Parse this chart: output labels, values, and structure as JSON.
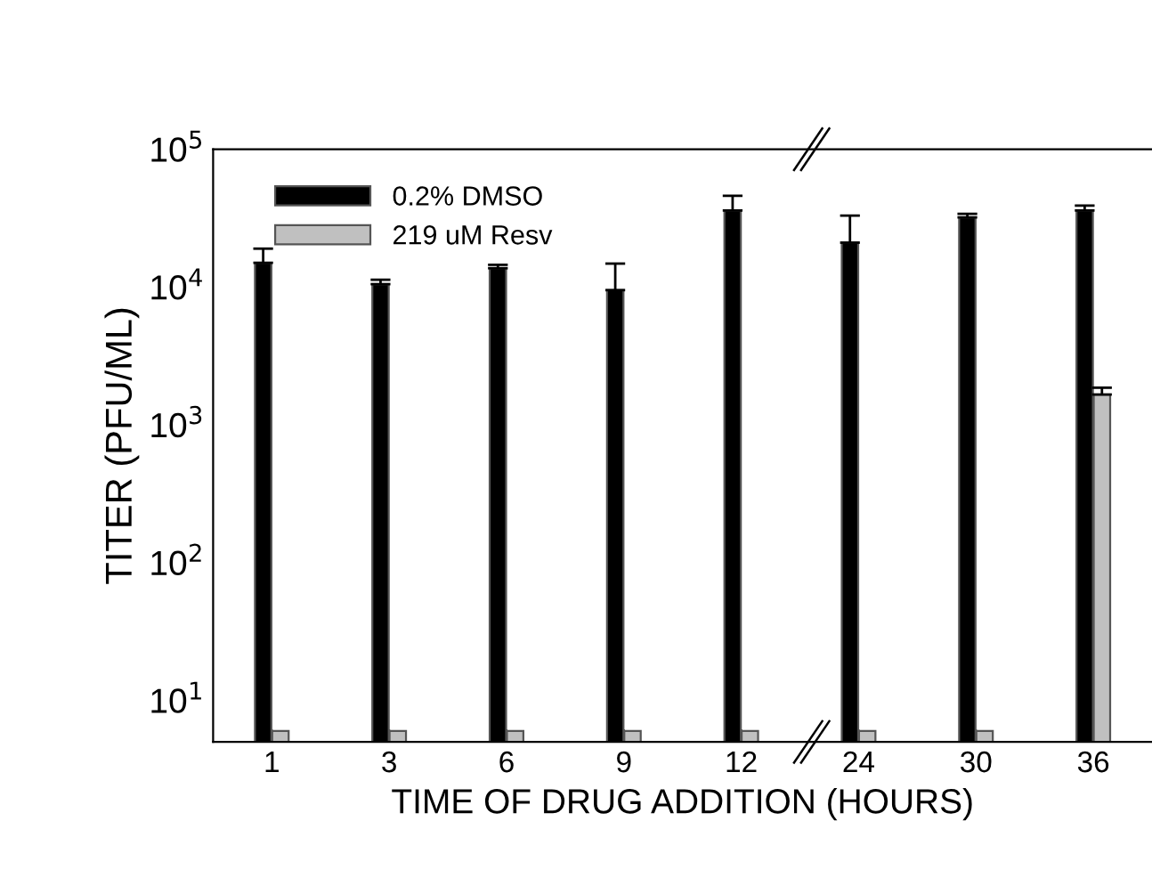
{
  "chart_data": {
    "type": "bar",
    "xlabel": "TIME OF DRUG ADDITION (HOURS)",
    "ylabel": "TITER (PFU/ML)",
    "categories": [
      "1",
      "3",
      "6",
      "9",
      "12",
      "24",
      "30",
      "36"
    ],
    "series": [
      {
        "name": "0.2% DMSO",
        "color": "#000000",
        "values": [
          15000,
          10500,
          13700,
          9500,
          36000,
          21000,
          32000,
          36000
        ],
        "errors": [
          [
            15000,
            19000
          ],
          [
            10500,
            11300
          ],
          [
            13700,
            14500
          ],
          [
            9500,
            14800
          ],
          [
            36000,
            46000
          ],
          [
            21000,
            33000
          ],
          [
            32000,
            34000
          ],
          [
            36000,
            39000
          ]
        ]
      },
      {
        "name": "219 uM Resv",
        "color": "#c0c0c0",
        "values": [
          6,
          6,
          6,
          6,
          6,
          6,
          6,
          1660
        ],
        "errors": [
          null,
          null,
          null,
          null,
          null,
          null,
          null,
          [
            1660,
            1860
          ]
        ]
      }
    ],
    "log": true,
    "ylim": [
      5,
      100000
    ],
    "yticks": [
      {
        "value": 10,
        "label": "10$^{1}$"
      },
      {
        "value": 100,
        "label": "10$^{2}$"
      },
      {
        "value": 1000,
        "label": "10$^{3}$"
      },
      {
        "value": 10000,
        "label": "10$^{4}$"
      },
      {
        "value": 100000,
        "label": "10$^{5}$"
      }
    ],
    "legend": "top left",
    "grid": false
  }
}
